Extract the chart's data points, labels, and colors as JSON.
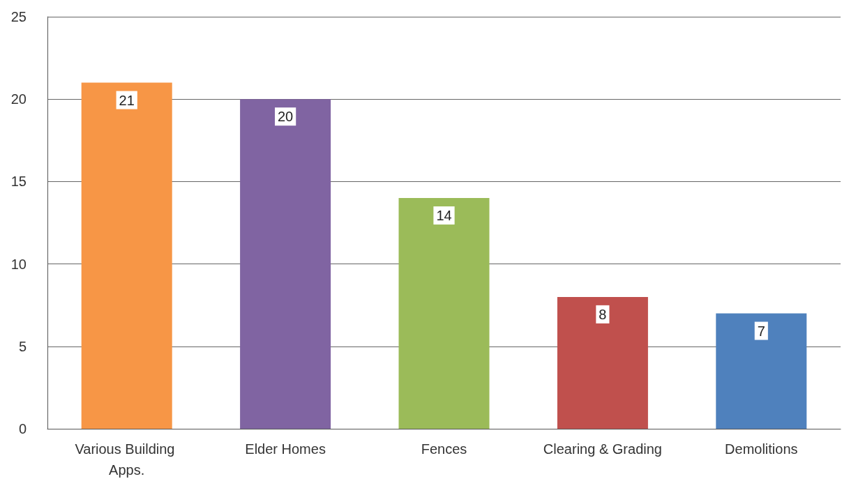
{
  "chart_data": {
    "type": "bar",
    "categories": [
      "Various Building Apps.",
      "Elder Homes",
      "Fences",
      "Clearing & Grading",
      "Demolitions"
    ],
    "values": [
      21,
      20,
      14,
      8,
      7
    ],
    "colors": [
      "#f79646",
      "#8064a2",
      "#9bbb59",
      "#c0504d",
      "#4f81bd"
    ],
    "ylim": [
      0,
      25
    ],
    "yticks": [
      0,
      5,
      10,
      15,
      20,
      25
    ],
    "grid": "y",
    "data_labels": true
  }
}
